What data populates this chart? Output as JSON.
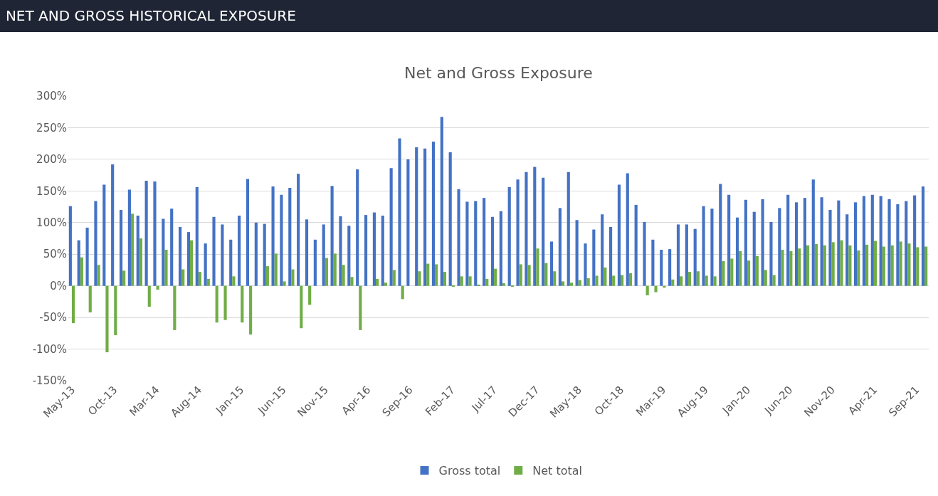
{
  "chart_data": {
    "type": "bar",
    "title": "NET AND GROSS HISTORICAL EXPOSURE",
    "subtitle": "Net and Gross Exposure",
    "categories": [
      "May-13",
      null,
      null,
      null,
      null,
      "Oct-13",
      null,
      null,
      null,
      null,
      "Mar-14",
      null,
      null,
      null,
      null,
      "Aug-14",
      null,
      null,
      null,
      null,
      "Jan-15",
      null,
      null,
      null,
      null,
      "Jun-15",
      null,
      null,
      null,
      null,
      "Nov-15",
      null,
      null,
      null,
      null,
      "Apr-16",
      null,
      null,
      null,
      null,
      "Sep-16",
      null,
      null,
      null,
      null,
      "Feb-17",
      null,
      null,
      null,
      null,
      "Jul-17",
      null,
      null,
      null,
      null,
      "Dec-17",
      null,
      null,
      null,
      null,
      "May-18",
      null,
      null,
      null,
      null,
      "Oct-18",
      null,
      null,
      null,
      null,
      "Mar-19",
      null,
      null,
      null,
      null,
      "Aug-19",
      null,
      null,
      null,
      null,
      "Jan-20",
      null,
      null,
      null,
      null,
      "Jun-20",
      null,
      null,
      null,
      null,
      "Nov-20",
      null,
      null,
      null,
      null,
      "Apr-21",
      null,
      null,
      null,
      null,
      "Sep-21",
      null
    ],
    "series": [
      {
        "name": "Gross total",
        "color": "#4472c4",
        "values": [
          126,
          72,
          92,
          134,
          160,
          192,
          120,
          152,
          111,
          166,
          165,
          106,
          122,
          93,
          85,
          156,
          67,
          109,
          97,
          73,
          111,
          169,
          100,
          98,
          157,
          144,
          155,
          177,
          105,
          73,
          97,
          158,
          110,
          95,
          184,
          112,
          116,
          111,
          186,
          233,
          200,
          219,
          217,
          228,
          267,
          211,
          153,
          133,
          134,
          139,
          109,
          118,
          156,
          168,
          180,
          188,
          171,
          70,
          123,
          180,
          104,
          67,
          89,
          113,
          93,
          160,
          178,
          128,
          101,
          73,
          57,
          58,
          97,
          97,
          90,
          126,
          122,
          161,
          144,
          108,
          136,
          117,
          137,
          101,
          123,
          144,
          132,
          139,
          168,
          140,
          120,
          135,
          113,
          132,
          142,
          144,
          142,
          137,
          129,
          134,
          143,
          157
        ]
      },
      {
        "name": "Net total",
        "color": "#70ad47",
        "values": [
          -59,
          45,
          -42,
          33,
          -105,
          -78,
          24,
          114,
          75,
          -33,
          -6,
          57,
          -70,
          26,
          72,
          22,
          11,
          -58,
          -54,
          15,
          -58,
          -77,
          null,
          31,
          51,
          7,
          26,
          -67,
          -30,
          null,
          44,
          51,
          33,
          14,
          -70,
          null,
          11,
          5,
          25,
          -21,
          null,
          23,
          35,
          34,
          22,
          -1,
          15,
          15,
          2,
          11,
          27,
          4,
          -1,
          34,
          33,
          59,
          36,
          23,
          7,
          5,
          9,
          12,
          16,
          29,
          16,
          17,
          20,
          null,
          -15,
          -10,
          -3,
          10,
          15,
          22,
          23,
          16,
          15,
          39,
          43,
          55,
          40,
          47,
          25,
          17,
          57,
          55,
          59,
          64,
          66,
          64,
          69,
          72,
          64,
          56,
          65,
          71,
          62,
          64,
          70,
          67,
          61,
          62
        ]
      }
    ],
    "ylim": [
      -150,
      300
    ],
    "yticks": [
      {
        "value": -150,
        "label": "-150%"
      },
      {
        "value": -100,
        "label": "-100%"
      },
      {
        "value": -50,
        "label": "-50%"
      },
      {
        "value": 0,
        "label": "0%"
      },
      {
        "value": 50,
        "label": "50%"
      },
      {
        "value": 100,
        "label": "100%"
      },
      {
        "value": 150,
        "label": "150%"
      },
      {
        "value": 200,
        "label": "200%"
      },
      {
        "value": 250,
        "label": "250%"
      },
      {
        "value": 300,
        "label": "300%"
      }
    ],
    "grid": "y",
    "legend": "bottom"
  }
}
